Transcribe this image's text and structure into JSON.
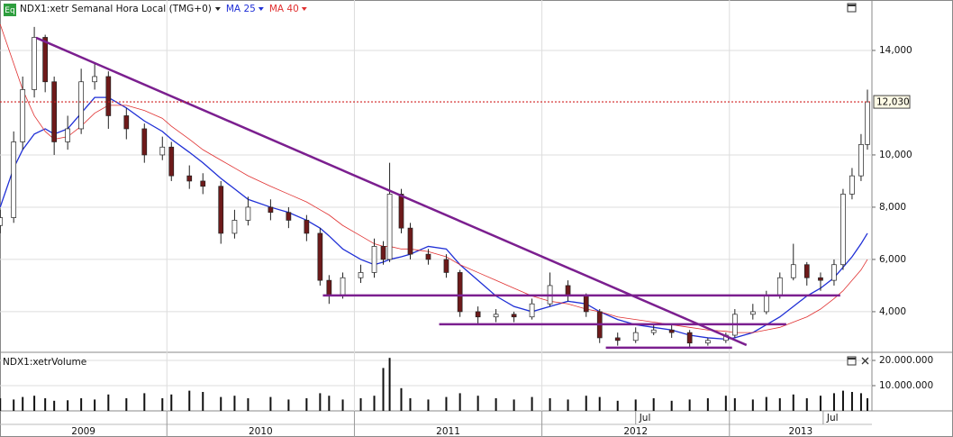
{
  "chart_data": [
    {
      "type": "candlestick",
      "badge": "Eq",
      "title": "NDX1:xetr Semanal Hora Local (TMG+0)",
      "x": [
        2009.111,
        2009.183,
        2009.231,
        2009.293,
        2009.351,
        2009.399,
        2009.471,
        2009.543,
        2009.615,
        2009.688,
        2009.784,
        2009.88,
        2009.976,
        2010.024,
        2010.12,
        2010.192,
        2010.288,
        2010.361,
        2010.433,
        2010.553,
        2010.649,
        2010.745,
        2010.817,
        2010.865,
        2010.938,
        2011.034,
        2011.106,
        2011.154,
        2011.188,
        2011.25,
        2011.298,
        2011.394,
        2011.49,
        2011.563,
        2011.659,
        2011.755,
        2011.851,
        2011.947,
        2012.043,
        2012.139,
        2012.236,
        2012.308,
        2012.404,
        2012.5,
        2012.596,
        2012.692,
        2012.788,
        2012.885,
        2012.981,
        2013.029,
        2013.125,
        2013.197,
        2013.269,
        2013.341,
        2013.413,
        2013.486,
        2013.558,
        2013.606,
        2013.654,
        2013.702,
        2013.736
      ],
      "open": [
        7300,
        7600,
        10500,
        12500,
        14500,
        12800,
        10500,
        11000,
        12800,
        13000,
        11500,
        11000,
        10000,
        10300,
        9200,
        9000,
        8800,
        7000,
        7500,
        8000,
        7800,
        7500,
        7000,
        5200,
        4600,
        5300,
        5500,
        6500,
        6000,
        8500,
        7200,
        6200,
        6000,
        5500,
        4000,
        3800,
        3900,
        3800,
        4300,
        5000,
        4600,
        4000,
        3000,
        2900,
        3200,
        3300,
        3200,
        2800,
        2900,
        3100,
        3900,
        4000,
        4600,
        5300,
        5800,
        5300,
        5200,
        5800,
        8500,
        9200,
        10400
      ],
      "high": [
        7900,
        10900,
        13000,
        14900,
        14600,
        13000,
        11500,
        13300,
        13500,
        13200,
        11800,
        11200,
        10700,
        10500,
        9600,
        9300,
        9000,
        7900,
        8400,
        8300,
        8000,
        7700,
        7200,
        5400,
        5500,
        5800,
        6800,
        6700,
        9700,
        8700,
        7400,
        6400,
        6200,
        5600,
        4200,
        4100,
        4000,
        4500,
        5500,
        5200,
        4700,
        4100,
        3200,
        3400,
        3500,
        3500,
        3300,
        3000,
        3200,
        4100,
        4300,
        4800,
        5500,
        6600,
        5900,
        5500,
        6000,
        8700,
        9500,
        10800,
        12500
      ],
      "low": [
        7000,
        7400,
        10200,
        12200,
        12400,
        10000,
        10200,
        10800,
        12500,
        11000,
        10600,
        9700,
        9800,
        9000,
        8700,
        8500,
        6600,
        6800,
        7300,
        7500,
        7200,
        6700,
        5000,
        4300,
        4500,
        5100,
        5300,
        5800,
        5900,
        7000,
        6000,
        5800,
        5300,
        3800,
        3500,
        3600,
        3600,
        3700,
        4200,
        4400,
        3800,
        2800,
        2700,
        2800,
        3100,
        3000,
        2600,
        2700,
        2800,
        3000,
        3700,
        3900,
        4500,
        5200,
        5000,
        4800,
        5000,
        5600,
        8300,
        9000,
        10200
      ],
      "close": [
        7600,
        10500,
        12500,
        14500,
        12800,
        10500,
        11000,
        12800,
        13000,
        11500,
        11000,
        10000,
        10300,
        9200,
        9000,
        8800,
        7000,
        7500,
        8000,
        7800,
        7500,
        7000,
        5200,
        4600,
        5300,
        5500,
        6500,
        6000,
        8500,
        7200,
        6200,
        6000,
        5500,
        4000,
        3800,
        3900,
        3800,
        4300,
        5000,
        4600,
        4000,
        3000,
        2900,
        3200,
        3300,
        3200,
        2800,
        2900,
        3100,
        3900,
        4000,
        4600,
        5300,
        5800,
        5300,
        5200,
        5800,
        8500,
        9200,
        10400,
        12030
      ],
      "up_color": "#ffffff",
      "down_color": "#6e1a1a",
      "candle_edge": "#222222",
      "series": [
        {
          "name": "MA 25",
          "color": "#1f2fd6",
          "values": [
            8000,
            9500,
            10200,
            10800,
            11000,
            10800,
            11000,
            11600,
            12200,
            12200,
            11800,
            11300,
            10900,
            10600,
            10100,
            9700,
            9100,
            8700,
            8300,
            8000,
            7800,
            7500,
            7200,
            6900,
            6400,
            6000,
            5800,
            5900,
            6000,
            6100,
            6200,
            6500,
            6400,
            5800,
            5200,
            4600,
            4200,
            4000,
            4200,
            4400,
            4300,
            4000,
            3700,
            3500,
            3400,
            3300,
            3100,
            3000,
            2950,
            3000,
            3200,
            3500,
            3800,
            4200,
            4600,
            4900,
            5300,
            5700,
            6100,
            6600,
            7000
          ]
        },
        {
          "name": "MA 40",
          "color": "#e03030",
          "values": [
            15000,
            13500,
            12500,
            11500,
            10900,
            10600,
            10700,
            11100,
            11600,
            11900,
            11900,
            11700,
            11400,
            11100,
            10600,
            10200,
            9800,
            9500,
            9200,
            8800,
            8500,
            8200,
            7900,
            7700,
            7300,
            6900,
            6600,
            6500,
            6500,
            6400,
            6400,
            6300,
            6100,
            5800,
            5500,
            5200,
            4900,
            4600,
            4400,
            4300,
            4100,
            4000,
            3800,
            3700,
            3600,
            3500,
            3400,
            3300,
            3250,
            3200,
            3200,
            3300,
            3400,
            3600,
            3800,
            4100,
            4500,
            4800,
            5200,
            5600,
            6000
          ]
        }
      ],
      "xlim": [
        2009.11,
        2013.76
      ],
      "ylim": [
        2480,
        15930
      ],
      "yticks": [
        {
          "value": 4000,
          "label": "4,000"
        },
        {
          "value": 6000,
          "label": "6,000"
        },
        {
          "value": 8000,
          "label": "8,000"
        },
        {
          "value": 10000,
          "label": "10,000"
        },
        {
          "value": 14000,
          "label": "14,000"
        }
      ],
      "xticks": [
        2009,
        2010,
        2011,
        2012,
        2013
      ],
      "minor_xticks": [
        {
          "value": 2012.5,
          "label": "Jul"
        },
        {
          "value": 2013.5,
          "label": "Jul"
        }
      ],
      "last_price": {
        "value": 12030,
        "label": "12,030",
        "color": "#d02020"
      },
      "trendlines": [
        {
          "color": "#7b1f8f",
          "x": [
            2009.303,
            2013.091
          ],
          "y": [
            14483,
            2724
          ]
        },
        {
          "color": "#7b1f8f",
          "x": [
            2010.832,
            2013.591
          ],
          "y": [
            4621,
            4621
          ]
        },
        {
          "color": "#7b1f8f",
          "x": [
            2011.452,
            2013.303
          ],
          "y": [
            3517,
            3517
          ]
        },
        {
          "color": "#7b1f8f",
          "x": [
            2012.341,
            2013.014
          ],
          "y": [
            2621,
            2621
          ]
        }
      ],
      "grid": true
    },
    {
      "type": "bar",
      "title": "NDX1:xetrVolume",
      "x": [
        2009.111,
        2009.183,
        2009.231,
        2009.293,
        2009.351,
        2009.399,
        2009.471,
        2009.543,
        2009.615,
        2009.688,
        2009.784,
        2009.88,
        2009.976,
        2010.024,
        2010.12,
        2010.192,
        2010.288,
        2010.361,
        2010.433,
        2010.553,
        2010.649,
        2010.745,
        2010.817,
        2010.865,
        2010.938,
        2011.034,
        2011.106,
        2011.154,
        2011.188,
        2011.25,
        2011.298,
        2011.394,
        2011.49,
        2011.563,
        2011.659,
        2011.755,
        2011.851,
        2011.947,
        2012.043,
        2012.139,
        2012.236,
        2012.308,
        2012.404,
        2012.5,
        2012.596,
        2012.692,
        2012.788,
        2012.885,
        2012.981,
        2013.029,
        2013.125,
        2013.197,
        2013.269,
        2013.341,
        2013.413,
        2013.486,
        2013.558,
        2013.606,
        2013.654,
        2013.702,
        2013.736
      ],
      "values": [
        5000000,
        4500000,
        5500000,
        6000000,
        5000000,
        4000000,
        4200000,
        5000000,
        4500000,
        6500000,
        5000000,
        7000000,
        5000000,
        6500000,
        8000000,
        7500000,
        5500000,
        6000000,
        5000000,
        5500000,
        4500000,
        5000000,
        7000000,
        6000000,
        4500000,
        5000000,
        6000000,
        17000000,
        21000000,
        9000000,
        5000000,
        4500000,
        5500000,
        7000000,
        6000000,
        5000000,
        4500000,
        5500000,
        5000000,
        4500000,
        6000000,
        5500000,
        4000000,
        4500000,
        5000000,
        4000000,
        4500000,
        5000000,
        6000000,
        5000000,
        4500000,
        5500000,
        5000000,
        6500000,
        5000000,
        6000000,
        7000000,
        8000000,
        7500000,
        7000000,
        5000000
      ],
      "color": "#111111",
      "ylim": [
        0,
        22500000
      ],
      "yticks": [
        {
          "value": 10000000,
          "label": "10.000.000"
        },
        {
          "value": 20000000,
          "label": "20.000.000"
        }
      ]
    }
  ]
}
